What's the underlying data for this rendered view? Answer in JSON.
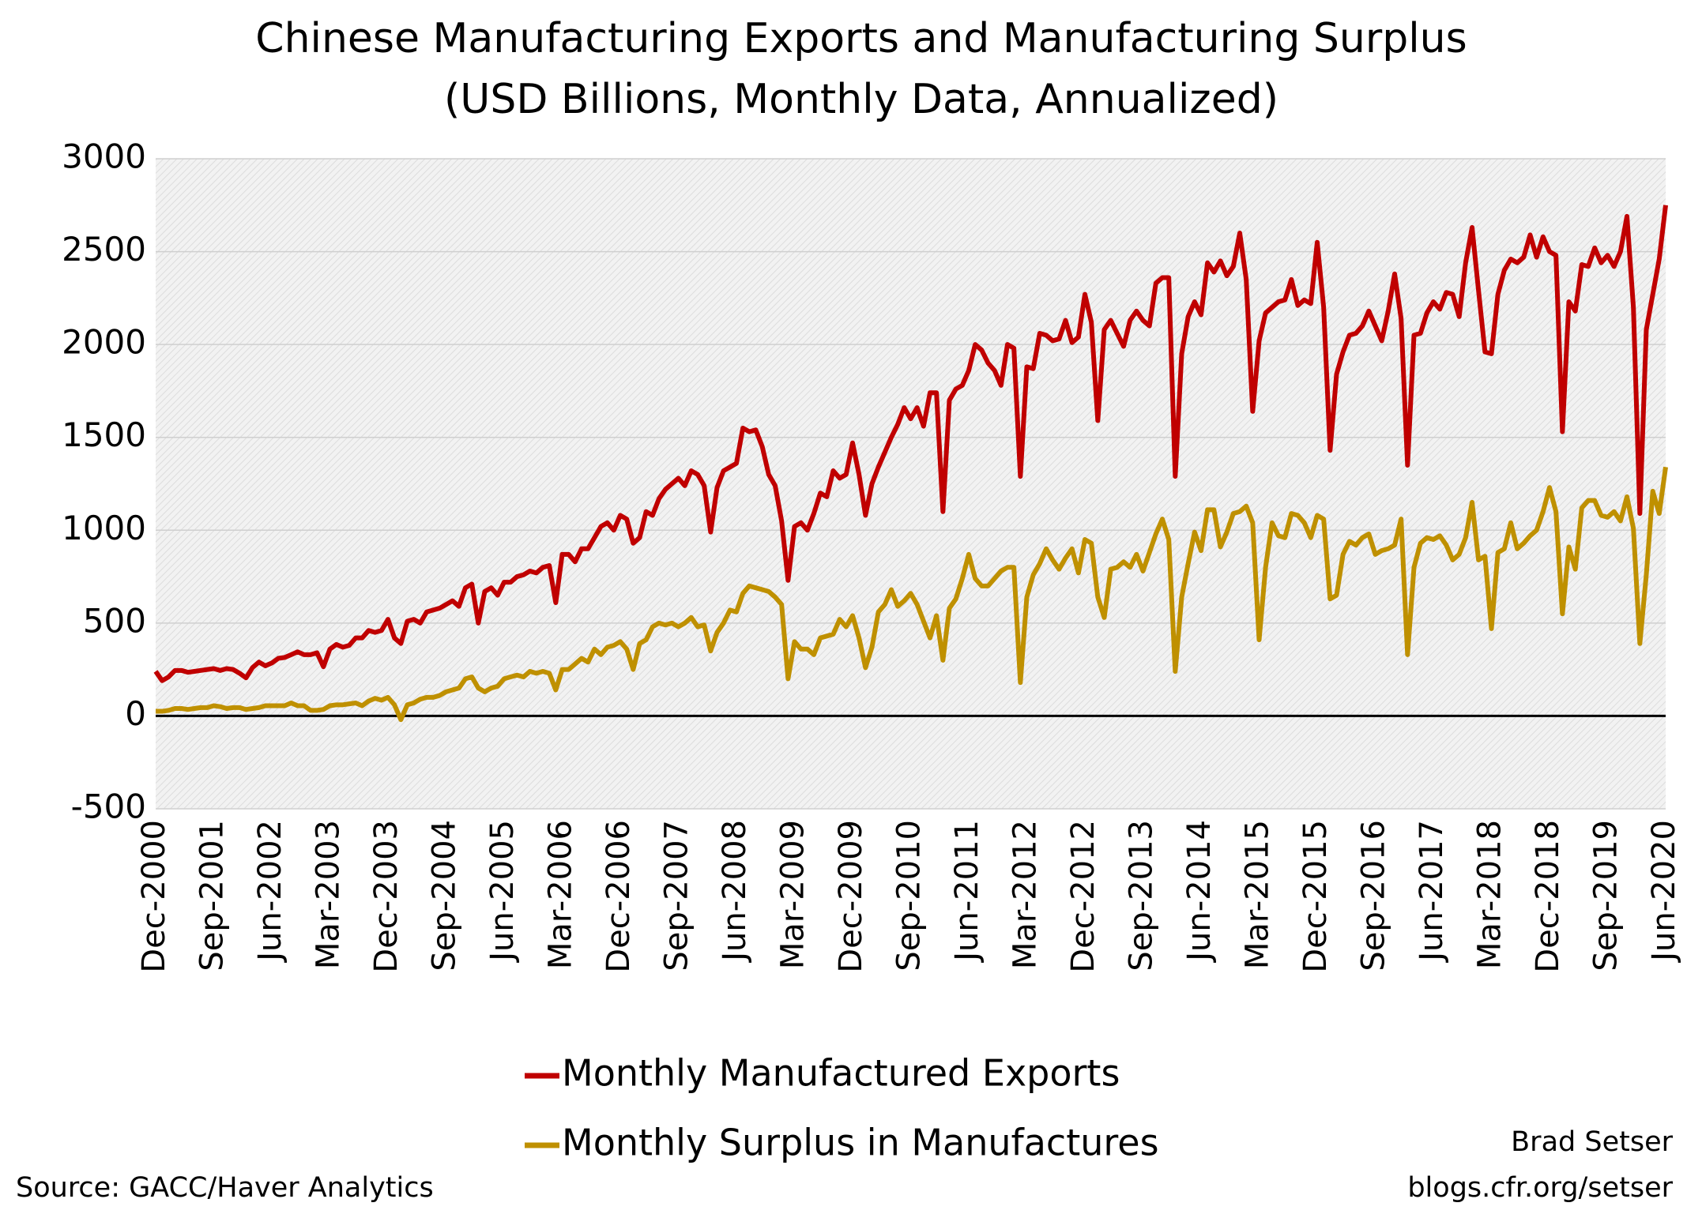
{
  "chart_data": {
    "type": "line",
    "title": "Chinese Manufacturing Exports and Manufacturing Surplus",
    "subtitle": "(USD Billions, Monthly Data, Annualized)",
    "source": "Source: GACC/Haver Analytics",
    "author": "Brad Setser",
    "website": "blogs.cfr.org/setser",
    "categories": [
      "Dec-2000",
      null,
      null,
      null,
      null,
      null,
      null,
      null,
      null,
      "Sep-2001",
      null,
      null,
      null,
      null,
      null,
      null,
      null,
      null,
      "Jun-2002",
      null,
      null,
      null,
      null,
      null,
      null,
      null,
      null,
      "Mar-2003",
      null,
      null,
      null,
      null,
      null,
      null,
      null,
      null,
      "Dec-2003",
      null,
      null,
      null,
      null,
      null,
      null,
      null,
      null,
      "Sep-2004",
      null,
      null,
      null,
      null,
      null,
      null,
      null,
      null,
      "Jun-2005",
      null,
      null,
      null,
      null,
      null,
      null,
      null,
      null,
      "Mar-2006",
      null,
      null,
      null,
      null,
      null,
      null,
      null,
      null,
      "Dec-2006",
      null,
      null,
      null,
      null,
      null,
      null,
      null,
      null,
      "Sep-2007",
      null,
      null,
      null,
      null,
      null,
      null,
      null,
      null,
      "Jun-2008",
      null,
      null,
      null,
      null,
      null,
      null,
      null,
      null,
      "Mar-2009",
      null,
      null,
      null,
      null,
      null,
      null,
      null,
      null,
      "Dec-2009",
      null,
      null,
      null,
      null,
      null,
      null,
      null,
      null,
      "Sep-2010",
      null,
      null,
      null,
      null,
      null,
      null,
      null,
      null,
      "Jun-2011",
      null,
      null,
      null,
      null,
      null,
      null,
      null,
      null,
      "Mar-2012",
      null,
      null,
      null,
      null,
      null,
      null,
      null,
      null,
      "Dec-2012",
      null,
      null,
      null,
      null,
      null,
      null,
      null,
      null,
      "Sep-2013",
      null,
      null,
      null,
      null,
      null,
      null,
      null,
      null,
      "Jun-2014",
      null,
      null,
      null,
      null,
      null,
      null,
      null,
      null,
      "Mar-2015",
      null,
      null,
      null,
      null,
      null,
      null,
      null,
      null,
      "Dec-2015",
      null,
      null,
      null,
      null,
      null,
      null,
      null,
      null,
      "Sep-2016",
      null,
      null,
      null,
      null,
      null,
      null,
      null,
      null,
      "Jun-2017",
      null,
      null,
      null,
      null,
      null,
      null,
      null,
      null,
      "Mar-2018",
      null,
      null,
      null,
      null,
      null,
      null,
      null,
      null,
      "Dec-2018",
      null,
      null,
      null,
      null,
      null,
      null,
      null,
      null,
      "Sep-2019",
      null,
      null,
      null,
      null,
      null,
      null,
      null,
      null,
      "Jun-2020"
    ],
    "series": [
      {
        "name": "Monthly Manufactured Exports",
        "color": "#c00000",
        "values": [
          240,
          190,
          210,
          245,
          245,
          235,
          240,
          245,
          250,
          255,
          245,
          255,
          250,
          230,
          205,
          260,
          290,
          270,
          285,
          310,
          315,
          330,
          345,
          330,
          330,
          340,
          265,
          360,
          385,
          370,
          380,
          420,
          420,
          460,
          450,
          460,
          520,
          420,
          390,
          510,
          520,
          500,
          560,
          570,
          580,
          600,
          620,
          590,
          690,
          710,
          500,
          670,
          690,
          650,
          720,
          720,
          750,
          760,
          780,
          770,
          800,
          810,
          610,
          870,
          870,
          830,
          900,
          900,
          960,
          1020,
          1040,
          1000,
          1080,
          1060,
          930,
          960,
          1100,
          1080,
          1170,
          1220,
          1250,
          1280,
          1240,
          1320,
          1300,
          1240,
          990,
          1230,
          1320,
          1340,
          1360,
          1550,
          1530,
          1540,
          1450,
          1300,
          1240,
          1050,
          730,
          1020,
          1040,
          1000,
          1090,
          1200,
          1180,
          1320,
          1280,
          1300,
          1470,
          1300,
          1080,
          1250,
          1340,
          1420,
          1500,
          1570,
          1660,
          1600,
          1660,
          1560,
          1740,
          1740,
          1100,
          1700,
          1760,
          1780,
          1860,
          2000,
          1970,
          1900,
          1860,
          1780,
          2000,
          1980,
          1290,
          1880,
          1870,
          2060,
          2050,
          2020,
          2030,
          2130,
          2010,
          2040,
          2270,
          2120,
          1590,
          2080,
          2130,
          2060,
          1990,
          2130,
          2180,
          2130,
          2100,
          2330,
          2360,
          2360,
          1290,
          1950,
          2150,
          2230,
          2160,
          2440,
          2390,
          2450,
          2370,
          2420,
          2600,
          2350,
          1640,
          2020,
          2170,
          2200,
          2230,
          2240,
          2350,
          2210,
          2240,
          2220,
          2550,
          2200,
          1430,
          1840,
          1960,
          2050,
          2060,
          2100,
          2180,
          2100,
          2020,
          2180,
          2380,
          2140,
          1350,
          2050,
          2060,
          2170,
          2230,
          2190,
          2280,
          2270,
          2150,
          2440,
          2630,
          2290,
          1960,
          1950,
          2270,
          2400,
          2460,
          2440,
          2470,
          2590,
          2470,
          2580,
          2500,
          2480,
          1530,
          2230,
          2180,
          2430,
          2420,
          2520,
          2440,
          2480,
          2420,
          2500,
          2690,
          2200,
          1090,
          2080,
          2270,
          2460,
          2750
        ]
      },
      {
        "name": "Monthly Surplus in Manufactures",
        "color": "#bf9000",
        "values": [
          25,
          25,
          30,
          40,
          40,
          35,
          40,
          45,
          45,
          55,
          50,
          40,
          45,
          45,
          35,
          40,
          45,
          55,
          55,
          55,
          55,
          70,
          55,
          55,
          30,
          30,
          35,
          55,
          60,
          60,
          65,
          70,
          55,
          80,
          95,
          85,
          100,
          60,
          -20,
          60,
          70,
          90,
          100,
          100,
          110,
          130,
          140,
          150,
          200,
          210,
          150,
          130,
          150,
          160,
          200,
          210,
          220,
          210,
          240,
          230,
          240,
          230,
          140,
          250,
          250,
          280,
          310,
          290,
          360,
          330,
          370,
          380,
          400,
          360,
          250,
          390,
          410,
          480,
          500,
          490,
          500,
          480,
          500,
          530,
          480,
          490,
          350,
          450,
          500,
          570,
          560,
          660,
          700,
          690,
          680,
          670,
          640,
          600,
          200,
          400,
          360,
          360,
          330,
          420,
          430,
          440,
          520,
          480,
          540,
          420,
          260,
          370,
          560,
          600,
          680,
          590,
          620,
          660,
          600,
          510,
          420,
          540,
          300,
          580,
          630,
          740,
          870,
          740,
          700,
          700,
          740,
          780,
          800,
          800,
          180,
          640,
          760,
          820,
          900,
          840,
          790,
          850,
          900,
          770,
          950,
          930,
          640,
          530,
          790,
          800,
          830,
          800,
          870,
          780,
          880,
          980,
          1060,
          950,
          240,
          640,
          820,
          990,
          890,
          1110,
          1110,
          910,
          990,
          1090,
          1100,
          1130,
          1040,
          410,
          800,
          1040,
          970,
          960,
          1090,
          1080,
          1040,
          960,
          1080,
          1060,
          630,
          650,
          870,
          940,
          920,
          960,
          980,
          870,
          890,
          900,
          920,
          1060,
          330,
          800,
          930,
          960,
          950,
          970,
          920,
          840,
          870,
          960,
          1150,
          840,
          860,
          470,
          880,
          900,
          1040,
          900,
          930,
          970,
          1000,
          1100,
          1230,
          1100,
          550,
          910,
          790,
          1120,
          1160,
          1160,
          1080,
          1070,
          1100,
          1050,
          1180,
          1010,
          390,
          760,
          1210,
          1090,
          1340
        ]
      }
    ],
    "ylim": [
      -500,
      3000
    ],
    "yticks": [
      -500,
      0,
      500,
      1000,
      1500,
      2000,
      2500,
      3000
    ],
    "grid": true
  }
}
